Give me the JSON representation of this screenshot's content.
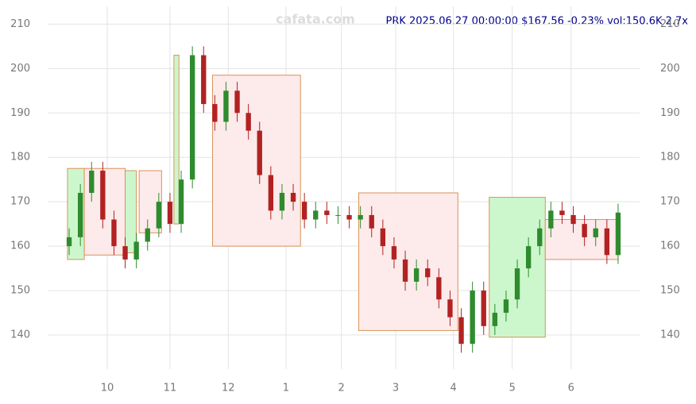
{
  "chart_data": {
    "type": "candlestick",
    "title": "PRK 2025.06.27 00:00:00 $167.56 -0.23% vol:150.6K 2.7x",
    "watermark": "cafata.com",
    "xlim": [
      0,
      100
    ],
    "ylim": [
      135,
      214
    ],
    "yticks": [
      140,
      150,
      160,
      170,
      180,
      190,
      200,
      210
    ],
    "xticks": [
      {
        "value": 7.8,
        "label": "10"
      },
      {
        "value": 19.0,
        "label": "11"
      },
      {
        "value": 29.4,
        "label": "12"
      },
      {
        "value": 39.7,
        "label": "1"
      },
      {
        "value": 49.6,
        "label": "2"
      },
      {
        "value": 59.3,
        "label": "3"
      },
      {
        "value": 69.6,
        "label": "4"
      },
      {
        "value": 80.1,
        "label": "5"
      },
      {
        "value": 90.6,
        "label": "6"
      }
    ],
    "grid": true,
    "up_color": "#2e8b2e",
    "down_color": "#b22222",
    "up_zone_color": "#ccf7cc",
    "down_zone_color": "#fdeaea",
    "zone_border_color": "#d9925a",
    "candles": {
      "x": [
        1,
        3,
        5,
        7,
        9,
        11,
        13,
        15,
        17,
        19,
        21,
        23,
        25,
        27,
        29,
        31,
        33,
        35,
        37,
        39,
        41,
        43,
        45,
        47,
        49,
        51,
        53,
        55,
        57,
        59,
        61,
        63,
        65,
        67,
        69,
        71,
        73,
        75,
        77,
        79,
        81,
        83,
        85,
        87,
        89,
        91,
        93,
        95,
        97,
        99
      ],
      "open": [
        160,
        162,
        172,
        177,
        166,
        160,
        157,
        161,
        164,
        170,
        165,
        175,
        203,
        192,
        188,
        195,
        190,
        186,
        176,
        168,
        172,
        170,
        166,
        168,
        167,
        167,
        166,
        167,
        164,
        160,
        157,
        152,
        155,
        153,
        148,
        144,
        138,
        150,
        142,
        145,
        148,
        155,
        160,
        164,
        168,
        167,
        165,
        162,
        164,
        158
      ],
      "high": [
        164,
        174,
        179,
        179,
        168,
        162,
        163,
        166,
        172,
        172,
        177,
        205,
        205,
        194,
        197,
        197,
        192,
        188,
        178,
        174,
        174,
        172,
        170,
        170,
        169,
        169,
        169,
        169,
        166,
        162,
        159,
        157,
        157,
        155,
        150,
        146,
        152,
        152,
        147,
        150,
        157,
        162,
        166,
        170,
        170,
        169,
        167,
        166,
        166,
        169.56
      ],
      "low": [
        158,
        160,
        170,
        164,
        158,
        155,
        155,
        159,
        162,
        163,
        163,
        173,
        190,
        186,
        186,
        188,
        184,
        174,
        166,
        166,
        168,
        164,
        164,
        165,
        165,
        164,
        164,
        162,
        158,
        155,
        150,
        150,
        151,
        146,
        142,
        136,
        136,
        140,
        140,
        143,
        146,
        153,
        158,
        162,
        165,
        163,
        160,
        160,
        156,
        156
      ],
      "close": [
        162,
        172,
        177,
        166,
        160,
        157,
        161,
        164,
        170,
        165,
        175,
        203,
        192,
        188,
        195,
        190,
        186,
        176,
        168,
        172,
        170,
        166,
        168,
        167,
        167,
        166,
        167,
        164,
        160,
        157,
        152,
        155,
        153,
        148,
        144,
        138,
        150,
        142,
        145,
        148,
        155,
        160,
        164,
        168,
        167,
        165,
        162,
        164,
        158,
        167.56
      ]
    },
    "zones": [
      {
        "x0": 0.7,
        "x1": 3.7,
        "low": 157,
        "high": 177.5,
        "kind": "up"
      },
      {
        "x0": 3.7,
        "x1": 11,
        "low": 158,
        "high": 177.5,
        "kind": "down"
      },
      {
        "x0": 11,
        "x1": 13,
        "low": 158.5,
        "high": 177,
        "kind": "up"
      },
      {
        "x0": 13.5,
        "x1": 17.5,
        "low": 163,
        "high": 177,
        "kind": "down"
      },
      {
        "x0": 19.7,
        "x1": 20.6,
        "low": 165,
        "high": 203,
        "kind": "up"
      },
      {
        "x0": 26.6,
        "x1": 42.3,
        "low": 160,
        "high": 198.5,
        "kind": "down"
      },
      {
        "x0": 52.7,
        "x1": 70.4,
        "low": 141,
        "high": 172,
        "kind": "down"
      },
      {
        "x0": 76,
        "x1": 86,
        "low": 139.5,
        "high": 171,
        "kind": "up"
      },
      {
        "x0": 86,
        "x1": 99,
        "low": 157,
        "high": 166,
        "kind": "down"
      }
    ]
  }
}
